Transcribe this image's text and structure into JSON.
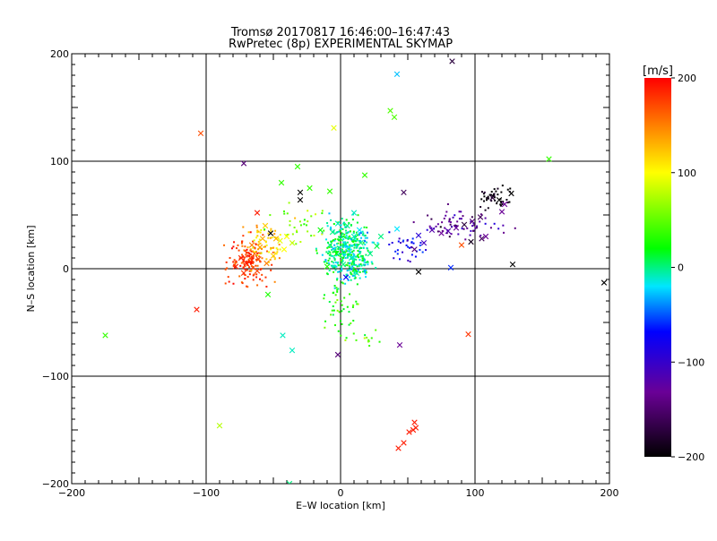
{
  "chart_data": {
    "type": "scatter",
    "title": "Tromsø 20170817 16:46:00–16:47:43",
    "subtitle": "RwPretec (8p) EXPERIMENTAL SKYMAP",
    "xlabel": "E–W location [km]",
    "ylabel": "N–S location [km]",
    "xlim": [
      -200,
      200
    ],
    "ylim": [
      -200,
      200
    ],
    "xticks": [
      -200,
      -100,
      0,
      100,
      200
    ],
    "yticks": [
      -200,
      -100,
      0,
      100,
      200
    ],
    "xtick_labels": [
      "−200",
      "−100",
      "0",
      "100",
      "200"
    ],
    "ytick_labels": [
      "−200",
      "−100",
      "0",
      "100",
      "200"
    ],
    "grid": true,
    "colorbar": {
      "label": "[m/s]",
      "range": [
        -200,
        200
      ],
      "ticks": [
        200,
        100,
        0,
        -100,
        -200
      ],
      "tick_labels": [
        "200",
        "100",
        "0",
        "−100",
        "−200"
      ],
      "colors": [
        "#000000",
        "#6a0096",
        "#0000ff",
        "#00e6ff",
        "#00ff00",
        "#ffff00",
        "#ff0000"
      ]
    },
    "marker_legend": {
      "x-marker": "large cross",
      "dot-marker": "small dot"
    },
    "points": [
      {
        "x": 83,
        "y": 193,
        "v": -180,
        "m": "x"
      },
      {
        "x": 42,
        "y": 181,
        "v": -50,
        "m": "x"
      },
      {
        "x": -104,
        "y": 126,
        "v": 170,
        "m": "x"
      },
      {
        "x": -5,
        "y": 131,
        "v": 90,
        "m": "x"
      },
      {
        "x": 37,
        "y": 147,
        "v": 30,
        "m": "x"
      },
      {
        "x": 40,
        "y": 141,
        "v": 30,
        "m": "x"
      },
      {
        "x": 155,
        "y": 102,
        "v": 20,
        "m": "x"
      },
      {
        "x": 196,
        "y": -13,
        "v": -200,
        "m": "x"
      },
      {
        "x": -72,
        "y": 98,
        "v": -160,
        "m": "x"
      },
      {
        "x": -32,
        "y": 95,
        "v": 20,
        "m": "x"
      },
      {
        "x": 18,
        "y": 87,
        "v": 20,
        "m": "x"
      },
      {
        "x": -44,
        "y": 80,
        "v": 20,
        "m": "x"
      },
      {
        "x": -30,
        "y": 71,
        "v": -200,
        "m": "x"
      },
      {
        "x": -30,
        "y": 64,
        "v": -200,
        "m": "x"
      },
      {
        "x": -8,
        "y": 72,
        "v": 20,
        "m": "x"
      },
      {
        "x": -23,
        "y": 75,
        "v": 20,
        "m": "x"
      },
      {
        "x": 47,
        "y": 71,
        "v": -170,
        "m": "x"
      },
      {
        "x": 113,
        "y": 66,
        "v": -180,
        "m": "x"
      },
      {
        "x": 118,
        "y": 64,
        "v": -200,
        "m": "x"
      },
      {
        "x": 122,
        "y": 60,
        "v": -150,
        "m": "x"
      },
      {
        "x": 127,
        "y": 70,
        "v": -200,
        "m": "x"
      },
      {
        "x": 120,
        "y": 53,
        "v": -150,
        "m": "x"
      },
      {
        "x": 104,
        "y": 48,
        "v": -170,
        "m": "x"
      },
      {
        "x": 98,
        "y": 44,
        "v": -160,
        "m": "x"
      },
      {
        "x": 92,
        "y": 41,
        "v": -180,
        "m": "x"
      },
      {
        "x": 86,
        "y": 38,
        "v": -150,
        "m": "x"
      },
      {
        "x": 80,
        "y": 35,
        "v": -140,
        "m": "x"
      },
      {
        "x": 75,
        "y": 33,
        "v": -150,
        "m": "x"
      },
      {
        "x": 68,
        "y": 36,
        "v": -140,
        "m": "x"
      },
      {
        "x": 58,
        "y": 31,
        "v": -120,
        "m": "x"
      },
      {
        "x": 62,
        "y": 24,
        "v": -130,
        "m": "x"
      },
      {
        "x": 55,
        "y": 18,
        "v": -160,
        "m": "x"
      },
      {
        "x": 97,
        "y": 25,
        "v": -190,
        "m": "x"
      },
      {
        "x": 105,
        "y": 28,
        "v": -170,
        "m": "x"
      },
      {
        "x": 108,
        "y": 30,
        "v": -150,
        "m": "x"
      },
      {
        "x": 90,
        "y": 22,
        "v": 170,
        "m": "x"
      },
      {
        "x": 128,
        "y": 4,
        "v": -200,
        "m": "x"
      },
      {
        "x": 82,
        "y": 1,
        "v": -90,
        "m": "x"
      },
      {
        "x": 58,
        "y": -3,
        "v": -200,
        "m": "x"
      },
      {
        "x": 95,
        "y": -61,
        "v": 180,
        "m": "x"
      },
      {
        "x": 44,
        "y": -71,
        "v": -150,
        "m": "x"
      },
      {
        "x": -2,
        "y": -80,
        "v": -160,
        "m": "x"
      },
      {
        "x": -36,
        "y": -76,
        "v": -30,
        "m": "x"
      },
      {
        "x": -43,
        "y": -62,
        "v": -30,
        "m": "x"
      },
      {
        "x": -54,
        "y": -24,
        "v": 10,
        "m": "x"
      },
      {
        "x": -107,
        "y": -38,
        "v": 190,
        "m": "x"
      },
      {
        "x": -175,
        "y": -62,
        "v": 20,
        "m": "x"
      },
      {
        "x": -90,
        "y": -146,
        "v": 70,
        "m": "x"
      },
      {
        "x": 43,
        "y": -167,
        "v": 190,
        "m": "x"
      },
      {
        "x": 47,
        "y": -162,
        "v": 190,
        "m": "x"
      },
      {
        "x": 51,
        "y": -152,
        "v": 190,
        "m": "x"
      },
      {
        "x": 54,
        "y": -150,
        "v": 190,
        "m": "x"
      },
      {
        "x": 56,
        "y": -148,
        "v": 190,
        "m": "x"
      },
      {
        "x": 55,
        "y": -143,
        "v": 190,
        "m": "x"
      },
      {
        "x": -38,
        "y": -200,
        "v": -20,
        "m": "x"
      },
      {
        "x": -62,
        "y": 52,
        "v": 190,
        "m": "x"
      },
      {
        "x": -56,
        "y": 40,
        "v": 120,
        "m": "x"
      },
      {
        "x": -52,
        "y": 33,
        "v": -200,
        "m": "x"
      },
      {
        "x": -45,
        "y": 26,
        "v": 90,
        "m": "x"
      },
      {
        "x": -40,
        "y": 30,
        "v": 100,
        "m": "x"
      },
      {
        "x": -48,
        "y": 28,
        "v": 130,
        "m": "x"
      },
      {
        "x": -58,
        "y": 28,
        "v": 130,
        "m": "x"
      },
      {
        "x": -60,
        "y": 20,
        "v": 140,
        "m": "x"
      },
      {
        "x": -64,
        "y": 14,
        "v": 160,
        "m": "x"
      },
      {
        "x": -66,
        "y": 8,
        "v": 180,
        "m": "x"
      },
      {
        "x": -70,
        "y": 5,
        "v": 190,
        "m": "x"
      },
      {
        "x": -74,
        "y": 10,
        "v": 185,
        "m": "x"
      },
      {
        "x": -78,
        "y": 2,
        "v": 190,
        "m": "x"
      },
      {
        "x": -72,
        "y": -4,
        "v": 180,
        "m": "x"
      },
      {
        "x": -62,
        "y": -2,
        "v": 175,
        "m": "x"
      },
      {
        "x": -55,
        "y": 5,
        "v": 150,
        "m": "x"
      },
      {
        "x": -50,
        "y": 12,
        "v": 120,
        "m": "x"
      },
      {
        "x": -42,
        "y": 18,
        "v": 100,
        "m": "x"
      },
      {
        "x": -36,
        "y": 24,
        "v": 80,
        "m": "x"
      },
      {
        "x": -66,
        "y": 22,
        "v": 150,
        "m": "x"
      },
      {
        "x": -61,
        "y": 9,
        "v": 170,
        "m": "x"
      },
      {
        "x": -2,
        "y": 42,
        "v": -30,
        "m": "x"
      },
      {
        "x": 5,
        "y": 40,
        "v": -20,
        "m": "x"
      },
      {
        "x": 10,
        "y": 30,
        "v": -30,
        "m": "x"
      },
      {
        "x": 14,
        "y": 36,
        "v": -40,
        "m": "x"
      },
      {
        "x": -6,
        "y": 34,
        "v": -20,
        "m": "x"
      },
      {
        "x": 0,
        "y": 28,
        "v": -10,
        "m": "x"
      },
      {
        "x": -8,
        "y": 22,
        "v": -20,
        "m": "x"
      },
      {
        "x": 6,
        "y": 20,
        "v": -40,
        "m": "x"
      },
      {
        "x": -3,
        "y": 14,
        "v": 0,
        "m": "x"
      },
      {
        "x": 8,
        "y": 10,
        "v": -30,
        "m": "x"
      },
      {
        "x": 2,
        "y": 4,
        "v": -20,
        "m": "x"
      },
      {
        "x": -10,
        "y": 2,
        "v": 10,
        "m": "x"
      },
      {
        "x": 12,
        "y": -4,
        "v": -30,
        "m": "x"
      },
      {
        "x": 4,
        "y": -8,
        "v": -100,
        "m": "x"
      },
      {
        "x": 15,
        "y": 24,
        "v": -20,
        "m": "x"
      },
      {
        "x": 27,
        "y": 21,
        "v": -10,
        "m": "x"
      },
      {
        "x": 30,
        "y": 30,
        "v": -20,
        "m": "x"
      },
      {
        "x": 42,
        "y": 37,
        "v": -40,
        "m": "x"
      },
      {
        "x": 22,
        "y": 14,
        "v": -20,
        "m": "x"
      },
      {
        "x": -15,
        "y": 36,
        "v": 0,
        "m": "x"
      },
      {
        "x": 10,
        "y": 52,
        "v": -30,
        "m": "x"
      }
    ],
    "point_clusters": [
      {
        "cx": 5,
        "cy": 15,
        "sx": 13,
        "sy": 20,
        "n": 420,
        "v": -20,
        "vs": 30,
        "m": "d"
      },
      {
        "cx": -68,
        "cy": 5,
        "sx": 12,
        "sy": 14,
        "n": 140,
        "v": 180,
        "vs": 18,
        "m": "d"
      },
      {
        "cx": -55,
        "cy": 22,
        "sx": 10,
        "sy": 14,
        "n": 70,
        "v": 120,
        "vs": 30,
        "m": "d"
      },
      {
        "cx": 90,
        "cy": 40,
        "sx": 20,
        "sy": 10,
        "n": 70,
        "v": -150,
        "vs": 25,
        "m": "d"
      },
      {
        "cx": 115,
        "cy": 66,
        "sx": 9,
        "sy": 8,
        "n": 45,
        "v": -195,
        "vs": 8,
        "m": "d"
      },
      {
        "cx": 50,
        "cy": 20,
        "sx": 10,
        "sy": 10,
        "n": 35,
        "v": -110,
        "vs": 30,
        "m": "d"
      },
      {
        "cx": -30,
        "cy": 40,
        "sx": 15,
        "sy": 15,
        "n": 35,
        "v": 50,
        "vs": 40,
        "m": "d"
      },
      {
        "cx": 0,
        "cy": -35,
        "sx": 10,
        "sy": 15,
        "n": 40,
        "v": 20,
        "vs": 30,
        "m": "d"
      },
      {
        "cx": 15,
        "cy": -65,
        "sx": 12,
        "sy": 10,
        "n": 15,
        "v": 30,
        "vs": 30,
        "m": "d"
      }
    ]
  }
}
